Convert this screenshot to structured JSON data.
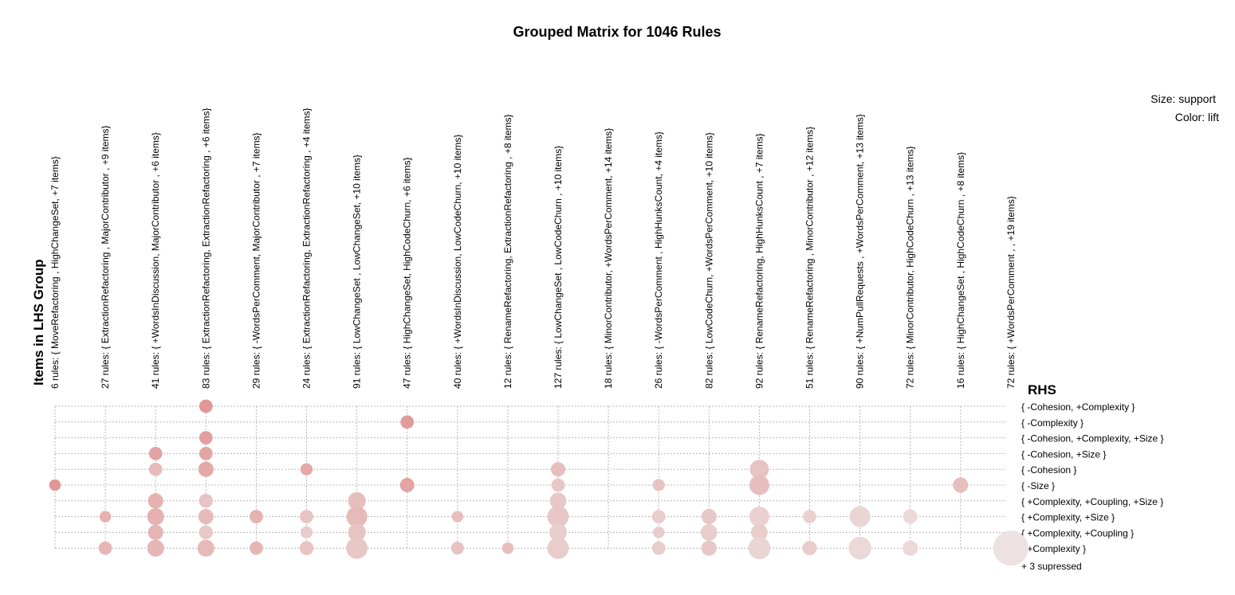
{
  "chart_data": {
    "type": "grouped_matrix",
    "title": "Grouped Matrix for 1046 Rules",
    "legend": {
      "size_label": "Size: support",
      "color_label": "Color: lift"
    },
    "xlabel": "Items in LHS Group",
    "ylabel": "RHS",
    "lhs_groups": [
      "6 rules: { MoveRefactoring ,  HighChangeSet, +7 items}",
      "27 rules: { ExtractionRefactoring ,  MajorContributor , +9 items}",
      "41 rules: { +WordsInDiscussion,  MajorContributor , +6 items}",
      "83 rules: { ExtractionRefactoring,  ExtractionRefactoring , +6 items}",
      "29 rules: { -WordsPerComment,  MajorContributor , +7 items}",
      "24 rules: { ExtractionRefactoring,  ExtractionRefactoring , +4 items}",
      "91 rules: { LowChangeSet ,  LowChangeSet, +10 items}",
      "47 rules: { HighChangeSet,  HighCodeChurn, +6 items}",
      "40 rules: { +WordsInDiscussion,  LowCodeChurn, +10 items}",
      "12 rules: { RenameRefactoring,  ExtractionRefactoring , +8 items}",
      "127 rules: { LowChangeSet ,  LowCodeChurn , +10 items}",
      "18 rules: { MinorContributor,  +WordsPerComment, +14 items}",
      "26 rules: { -WordsPerComment ,  HighHunksCount, +4 items}",
      "82 rules: { LowCodeChurn,  +WordsPerComment, +10 items}",
      "92 rules: { RenameRefactoring,  HighHunksCount , +7 items}",
      "51 rules: { RenameRefactoring ,  MinorContributor , +12 items}",
      "90 rules: { +NumPullRequests ,  +WordsPerComment, +13 items}",
      "72 rules: { MinorContributor,  HighCodeChurn , +13 items}",
      "16 rules: { HighChangeSet ,  HighCodeChurn , +8 items}",
      "72 rules: { +WordsPerComment ,  , +19 items}"
    ],
    "rhs_items": [
      "{ -Cohesion, +Complexity }",
      "{ -Complexity }",
      "{ -Cohesion, +Complexity, +Size }",
      "{ -Cohesion, +Size }",
      "{ -Cohesion }",
      "{ -Size }",
      "{ +Complexity, +Coupling, +Size }",
      "{ +Complexity, +Size }",
      "{ +Complexity, +Coupling }",
      "{ +Complexity }"
    ],
    "suppressed_note": "+ 3 supressed",
    "points": [
      {
        "lhs": 0,
        "rhs": 5,
        "support": 0.05,
        "lift": 0.85
      },
      {
        "lhs": 1,
        "rhs": 7,
        "support": 0.05,
        "lift": 0.55
      },
      {
        "lhs": 1,
        "rhs": 9,
        "support": 0.08,
        "lift": 0.5
      },
      {
        "lhs": 2,
        "rhs": 3,
        "support": 0.08,
        "lift": 0.7
      },
      {
        "lhs": 2,
        "rhs": 4,
        "support": 0.08,
        "lift": 0.45
      },
      {
        "lhs": 2,
        "rhs": 6,
        "support": 0.12,
        "lift": 0.55
      },
      {
        "lhs": 2,
        "rhs": 7,
        "support": 0.16,
        "lift": 0.55
      },
      {
        "lhs": 2,
        "rhs": 8,
        "support": 0.12,
        "lift": 0.5
      },
      {
        "lhs": 2,
        "rhs": 9,
        "support": 0.16,
        "lift": 0.5
      },
      {
        "lhs": 3,
        "rhs": 0,
        "support": 0.08,
        "lift": 0.85
      },
      {
        "lhs": 3,
        "rhs": 2,
        "support": 0.08,
        "lift": 0.75
      },
      {
        "lhs": 3,
        "rhs": 3,
        "support": 0.08,
        "lift": 0.7
      },
      {
        "lhs": 3,
        "rhs": 4,
        "support": 0.12,
        "lift": 0.65
      },
      {
        "lhs": 3,
        "rhs": 6,
        "support": 0.09,
        "lift": 0.35
      },
      {
        "lhs": 3,
        "rhs": 7,
        "support": 0.12,
        "lift": 0.45
      },
      {
        "lhs": 3,
        "rhs": 8,
        "support": 0.09,
        "lift": 0.3
      },
      {
        "lhs": 3,
        "rhs": 9,
        "support": 0.16,
        "lift": 0.45
      },
      {
        "lhs": 4,
        "rhs": 7,
        "support": 0.08,
        "lift": 0.55
      },
      {
        "lhs": 4,
        "rhs": 9,
        "support": 0.08,
        "lift": 0.5
      },
      {
        "lhs": 5,
        "rhs": 4,
        "support": 0.06,
        "lift": 0.65
      },
      {
        "lhs": 5,
        "rhs": 7,
        "support": 0.08,
        "lift": 0.35
      },
      {
        "lhs": 5,
        "rhs": 8,
        "support": 0.06,
        "lift": 0.25
      },
      {
        "lhs": 5,
        "rhs": 9,
        "support": 0.09,
        "lift": 0.35
      },
      {
        "lhs": 6,
        "rhs": 6,
        "support": 0.18,
        "lift": 0.4
      },
      {
        "lhs": 6,
        "rhs": 7,
        "support": 0.28,
        "lift": 0.45
      },
      {
        "lhs": 6,
        "rhs": 8,
        "support": 0.18,
        "lift": 0.35
      },
      {
        "lhs": 6,
        "rhs": 9,
        "support": 0.3,
        "lift": 0.3
      },
      {
        "lhs": 7,
        "rhs": 1,
        "support": 0.08,
        "lift": 0.8
      },
      {
        "lhs": 7,
        "rhs": 5,
        "support": 0.1,
        "lift": 0.7
      },
      {
        "lhs": 8,
        "rhs": 7,
        "support": 0.05,
        "lift": 0.4
      },
      {
        "lhs": 8,
        "rhs": 9,
        "support": 0.07,
        "lift": 0.35
      },
      {
        "lhs": 9,
        "rhs": 9,
        "support": 0.05,
        "lift": 0.4
      },
      {
        "lhs": 10,
        "rhs": 4,
        "support": 0.1,
        "lift": 0.4
      },
      {
        "lhs": 10,
        "rhs": 5,
        "support": 0.08,
        "lift": 0.3
      },
      {
        "lhs": 10,
        "rhs": 6,
        "support": 0.15,
        "lift": 0.3
      },
      {
        "lhs": 10,
        "rhs": 7,
        "support": 0.3,
        "lift": 0.3
      },
      {
        "lhs": 10,
        "rhs": 8,
        "support": 0.18,
        "lift": 0.25
      },
      {
        "lhs": 10,
        "rhs": 9,
        "support": 0.3,
        "lift": 0.25
      },
      {
        "lhs": 12,
        "rhs": 5,
        "support": 0.06,
        "lift": 0.35
      },
      {
        "lhs": 12,
        "rhs": 7,
        "support": 0.08,
        "lift": 0.25
      },
      {
        "lhs": 12,
        "rhs": 8,
        "support": 0.05,
        "lift": 0.25
      },
      {
        "lhs": 12,
        "rhs": 9,
        "support": 0.08,
        "lift": 0.25
      },
      {
        "lhs": 13,
        "rhs": 7,
        "support": 0.12,
        "lift": 0.3
      },
      {
        "lhs": 13,
        "rhs": 8,
        "support": 0.15,
        "lift": 0.25
      },
      {
        "lhs": 13,
        "rhs": 9,
        "support": 0.12,
        "lift": 0.3
      },
      {
        "lhs": 14,
        "rhs": 4,
        "support": 0.22,
        "lift": 0.35
      },
      {
        "lhs": 14,
        "rhs": 5,
        "support": 0.25,
        "lift": 0.4
      },
      {
        "lhs": 14,
        "rhs": 7,
        "support": 0.25,
        "lift": 0.2
      },
      {
        "lhs": 14,
        "rhs": 8,
        "support": 0.15,
        "lift": 0.25
      },
      {
        "lhs": 14,
        "rhs": 9,
        "support": 0.33,
        "lift": 0.15
      },
      {
        "lhs": 15,
        "rhs": 7,
        "support": 0.08,
        "lift": 0.2
      },
      {
        "lhs": 15,
        "rhs": 9,
        "support": 0.1,
        "lift": 0.25
      },
      {
        "lhs": 16,
        "rhs": 7,
        "support": 0.28,
        "lift": 0.15
      },
      {
        "lhs": 16,
        "rhs": 9,
        "support": 0.35,
        "lift": 0.1
      },
      {
        "lhs": 17,
        "rhs": 7,
        "support": 0.1,
        "lift": 0.1
      },
      {
        "lhs": 17,
        "rhs": 9,
        "support": 0.12,
        "lift": 0.1
      },
      {
        "lhs": 18,
        "rhs": 5,
        "support": 0.12,
        "lift": 0.4
      },
      {
        "lhs": 19,
        "rhs": 9,
        "support": 1.0,
        "lift": 0.0
      }
    ]
  }
}
